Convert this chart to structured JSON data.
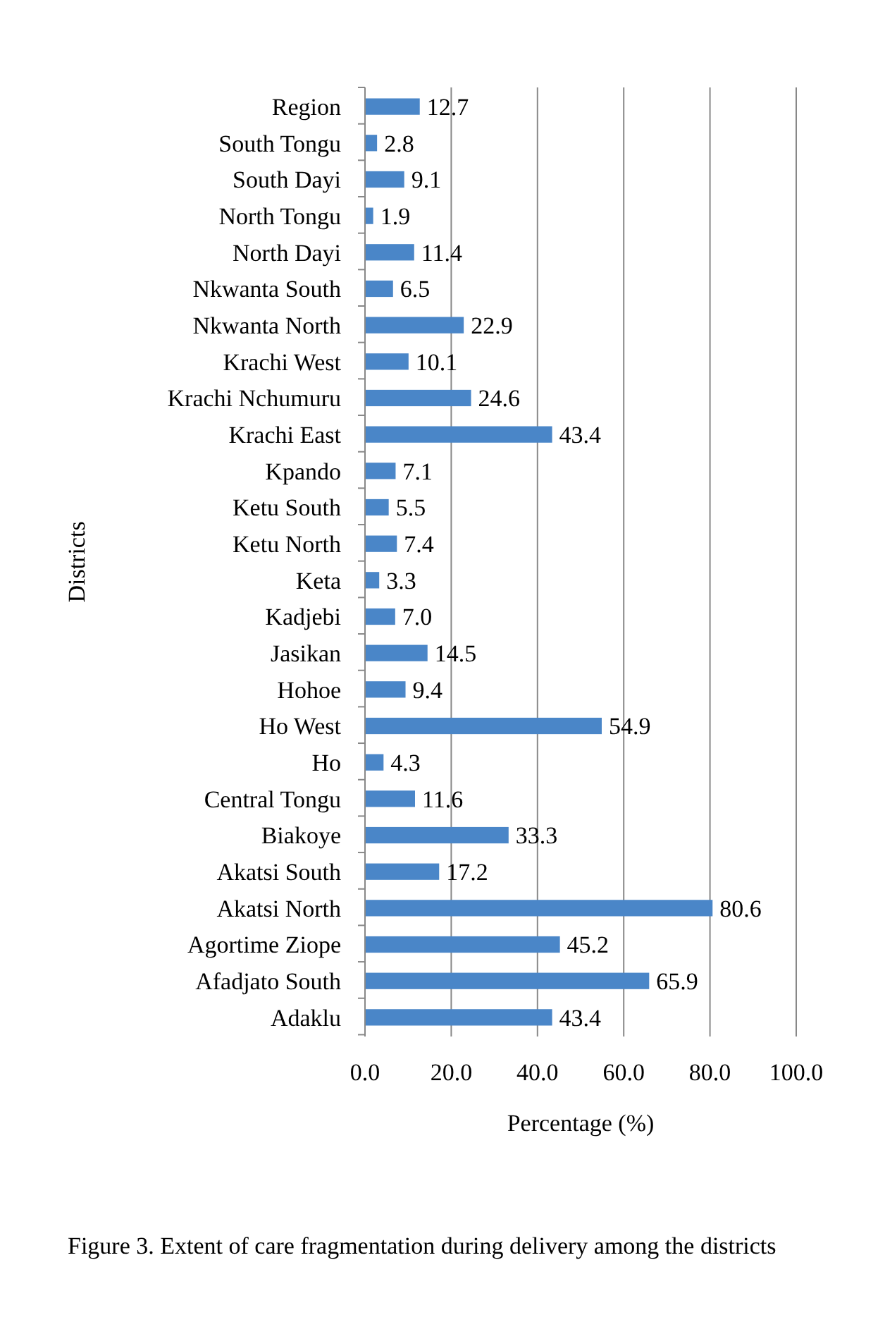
{
  "chart_data": {
    "type": "bar",
    "orientation": "horizontal",
    "ylabel": "Districts",
    "xlabel": "Percentage (%)",
    "categories": [
      "Region",
      "South Tongu",
      "South Dayi",
      "North Tongu",
      "North Dayi",
      "Nkwanta South",
      "Nkwanta North",
      "Krachi West",
      "Krachi Nchumuru",
      "Krachi East",
      "Kpando",
      "Ketu South",
      "Ketu North",
      "Keta",
      "Kadjebi",
      "Jasikan",
      "Hohoe",
      "Ho West",
      "Ho",
      "Central Tongu",
      "Biakoye",
      "Akatsi South",
      "Akatsi North",
      "Agortime Ziope",
      "Afadjato South",
      "Adaklu"
    ],
    "values": [
      12.7,
      2.8,
      9.1,
      1.9,
      11.4,
      6.5,
      22.9,
      10.1,
      24.6,
      43.4,
      7.1,
      5.5,
      7.4,
      3.3,
      7.0,
      14.5,
      9.4,
      54.9,
      4.3,
      11.6,
      33.3,
      17.2,
      80.6,
      45.2,
      65.9,
      43.4
    ],
    "value_labels": [
      "12.7",
      "2.8",
      "9.1",
      "1.9",
      "11.4",
      "6.5",
      "22.9",
      "10.1",
      "24.6",
      "43.4",
      "7.1",
      "5.5",
      "7.4",
      "3.3",
      "7.0",
      "14.5",
      "9.4",
      "54.9",
      "4.3",
      "11.6",
      "33.3",
      "17.2",
      "80.6",
      "45.2",
      "65.9",
      "43.4"
    ],
    "color": "#4a86c8",
    "xlim": [
      0,
      100
    ],
    "xticks": [
      {
        "value": 0,
        "label": "0.0"
      },
      {
        "value": 20,
        "label": "20.0"
      },
      {
        "value": 40,
        "label": "40.0"
      },
      {
        "value": 60,
        "label": "60.0"
      },
      {
        "value": 80,
        "label": "80.0"
      },
      {
        "value": 100,
        "label": "100.0"
      }
    ],
    "grid": "x",
    "annotations": [
      "Figure 3. Extent of care fragmentation during delivery among the districts"
    ]
  }
}
